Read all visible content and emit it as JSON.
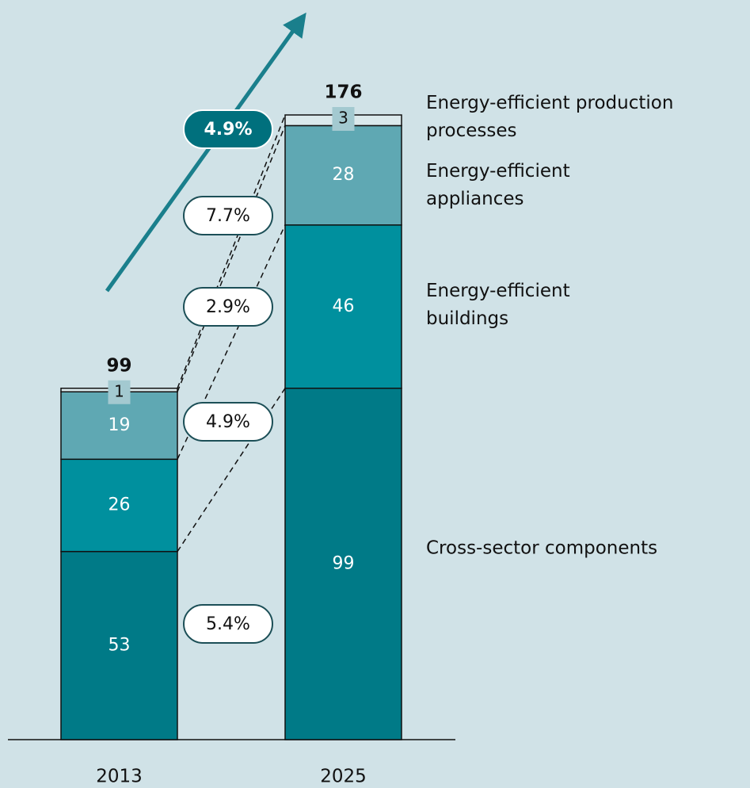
{
  "chart_data": {
    "type": "stacked_bar",
    "categories": [
      "2013",
      "2025"
    ],
    "totals": [
      99,
      176
    ],
    "total_growth": 4.9,
    "total_growth_label": "4.9%",
    "series": [
      {
        "name": "Cross-sector components",
        "color": "#007a87",
        "values": [
          53,
          99
        ],
        "growth": 5.4,
        "growth_label": "5.4%"
      },
      {
        "name": "Energy-efficient buildings",
        "color": "#00909e",
        "values": [
          26,
          46
        ],
        "growth": 4.9,
        "growth_label": "4.9%"
      },
      {
        "name": "Energy-efficient appliances",
        "color": "#5fa8b3",
        "values": [
          19,
          28
        ],
        "growth": 2.9,
        "growth_label": "2.9%"
      },
      {
        "name": "Energy-efficient production processes",
        "color": "#dbe9ec",
        "values": [
          1,
          3
        ],
        "growth": 7.7,
        "growth_label": "7.7%"
      }
    ]
  }
}
